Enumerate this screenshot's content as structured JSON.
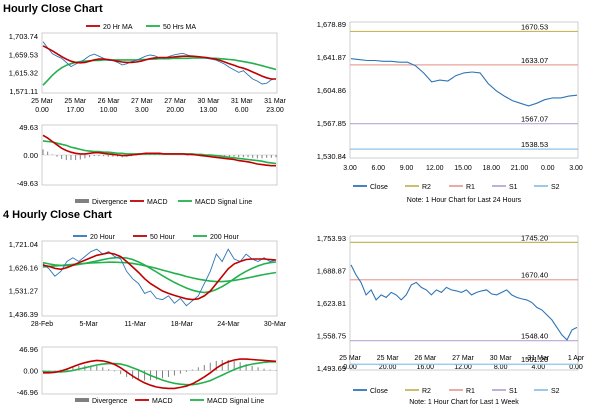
{
  "sections": [
    {
      "title": "Hourly Close Chart"
    },
    {
      "title": "4 Hourly Close Chart"
    }
  ],
  "colors": {
    "ma_short": "#c00000",
    "ma_long": "#22b14c",
    "price": "#2e75b6",
    "macd": "#c00000",
    "signal": "#22b14c",
    "divergence": "#808080",
    "r2": "#c8b65a",
    "r1": "#e8a49c",
    "s1": "#b9a6d4",
    "s2": "#8ec5e6"
  },
  "chart_data": [
    {
      "type": "line",
      "id": "hourly_price",
      "legend": [
        "20 Hr MA",
        "50 Hrs MA"
      ],
      "y_ticks": [
        "1,703.74",
        "1,659.53",
        "1,615.32",
        "1,571.11"
      ],
      "ylim": [
        1571.11,
        1703.74
      ],
      "x_ticks": [
        [
          "25 Mar",
          "0.00"
        ],
        [
          "25 Mar",
          "17.00"
        ],
        [
          "26 Mar",
          "10.00"
        ],
        [
          "27 Mar",
          "3.00"
        ],
        [
          "27 Mar",
          "20.00"
        ],
        [
          "30 Mar",
          "13.00"
        ],
        [
          "31 Mar",
          "6.00"
        ],
        [
          "31 Mar",
          "23.00"
        ]
      ],
      "series": [
        {
          "role": "price",
          "values": [
            1690,
            1675,
            1661,
            1655,
            1650,
            1640,
            1630,
            1636,
            1641,
            1648,
            1656,
            1660,
            1655,
            1650,
            1645,
            1645,
            1640,
            1634,
            1637,
            1642,
            1645,
            1650,
            1655,
            1658,
            1656,
            1651,
            1650,
            1654,
            1658,
            1660,
            1662,
            1658,
            1655,
            1654,
            1652,
            1650,
            1648,
            1646,
            1641,
            1636,
            1628,
            1622,
            1616,
            1620,
            1610,
            1600,
            1595,
            1588,
            1590,
            1598,
            1601
          ]
        },
        {
          "role": "ma_short",
          "values": [
            1680,
            1674,
            1668,
            1661,
            1654,
            1648,
            1643,
            1640,
            1639,
            1640,
            1643,
            1646,
            1648,
            1648,
            1647,
            1645,
            1643,
            1641,
            1640,
            1640,
            1641,
            1643,
            1646,
            1649,
            1651,
            1652,
            1652,
            1652,
            1653,
            1654,
            1655,
            1655,
            1655,
            1654,
            1653,
            1652,
            1650,
            1648,
            1645,
            1641,
            1637,
            1633,
            1629,
            1626,
            1622,
            1617,
            1612,
            1607,
            1603,
            1600,
            1600
          ]
        },
        {
          "role": "ma_long",
          "values": [
            1585,
            1597,
            1609,
            1619,
            1627,
            1633,
            1637,
            1640,
            1642,
            1643,
            1644,
            1645,
            1645,
            1646,
            1646,
            1646,
            1646,
            1646,
            1646,
            1646,
            1646,
            1647,
            1647,
            1648,
            1648,
            1649,
            1649,
            1649,
            1650,
            1650,
            1650,
            1650,
            1651,
            1651,
            1651,
            1651,
            1650,
            1650,
            1649,
            1648,
            1647,
            1646,
            1644,
            1642,
            1640,
            1638,
            1635,
            1632,
            1629,
            1626,
            1623
          ]
        }
      ]
    },
    {
      "type": "line",
      "id": "hourly_macd",
      "legend": [
        "Divergence",
        "MACD",
        "MACD Signal Line"
      ],
      "y_ticks": [
        "49.63",
        "0.00",
        "-49.63"
      ],
      "ylim": [
        -49.63,
        49.63
      ],
      "series": [
        {
          "role": "macd",
          "values": [
            35,
            30,
            24,
            18,
            12,
            8,
            5,
            3,
            2,
            2,
            3,
            4,
            4,
            3,
            2,
            1,
            0,
            -1,
            -1,
            0,
            1,
            2,
            3,
            3,
            3,
            3,
            2,
            2,
            2,
            2,
            2,
            1,
            1,
            0,
            -1,
            -2,
            -3,
            -4,
            -5,
            -6,
            -7,
            -8,
            -10,
            -11,
            -12,
            -14,
            -16,
            -17,
            -18,
            -19,
            -19
          ]
        },
        {
          "role": "signal",
          "values": [
            25,
            24,
            23,
            21,
            19,
            17,
            14,
            12,
            10,
            8,
            7,
            6,
            6,
            5,
            5,
            4,
            3,
            3,
            2,
            2,
            2,
            2,
            2,
            2,
            2,
            2,
            2,
            2,
            2,
            2,
            2,
            2,
            2,
            1,
            1,
            0,
            0,
            -1,
            -2,
            -3,
            -4,
            -5,
            -6,
            -7,
            -8,
            -9,
            -10,
            -11,
            -13,
            -14,
            -15
          ]
        },
        {
          "role": "divergence",
          "values": [
            10,
            6,
            1,
            -3,
            -7,
            -9,
            -9,
            -9,
            -8,
            -6,
            -4,
            -2,
            -2,
            -2,
            -3,
            -3,
            -3,
            -4,
            -3,
            -2,
            -1,
            0,
            1,
            1,
            1,
            1,
            0,
            0,
            0,
            0,
            0,
            -1,
            -1,
            -1,
            -2,
            -2,
            -3,
            -3,
            -3,
            -3,
            -3,
            -3,
            -4,
            -4,
            -4,
            -5,
            -6,
            -6,
            -5,
            -5,
            -4
          ]
        }
      ]
    },
    {
      "type": "line",
      "id": "hourly_pivots",
      "y_ticks": [
        "1,678.89",
        "1,641.87",
        "1,604.86",
        "1,567.85",
        "1,530.84"
      ],
      "ylim": [
        1530.84,
        1678.89
      ],
      "x_ticks": [
        "3.00",
        "6.00",
        "9.00",
        "12.00",
        "15.00",
        "18.00",
        "21.00",
        "0.00",
        "3.00"
      ],
      "levels": [
        {
          "name": "R2",
          "value": 1670.53,
          "label": "1670.53"
        },
        {
          "name": "R1",
          "value": 1633.07,
          "label": "1633.07"
        },
        {
          "name": "S1",
          "value": 1567.07,
          "label": "1567.07"
        },
        {
          "name": "S2",
          "value": 1538.53,
          "label": "1538.53"
        }
      ],
      "legend": [
        "Close",
        "R2",
        "R1",
        "S1",
        "S2"
      ],
      "note": "Note: 1 Hour Chart for Last 24 Hours",
      "close": [
        1640,
        1639,
        1638,
        1638,
        1637,
        1637,
        1636,
        1636,
        1632,
        1624,
        1614,
        1616,
        1615,
        1621,
        1624,
        1625,
        1624,
        1612,
        1604,
        1598,
        1593,
        1590,
        1587,
        1590,
        1594,
        1596,
        1596,
        1598,
        1599
      ]
    },
    {
      "type": "line",
      "id": "four_hourly_price",
      "legend": [
        "20 Hour",
        "50 Hour",
        "200 Hour"
      ],
      "y_ticks": [
        "1,721.04",
        "1,626.16",
        "1,531.27",
        "1,436.39"
      ],
      "ylim": [
        1436.39,
        1721.04
      ],
      "x_ticks": [
        "28-Feb",
        "5-Mar",
        "11-Mar",
        "18-Mar",
        "24-Mar",
        "30-Mar"
      ],
      "series": [
        {
          "role": "price",
          "values": [
            1640,
            1620,
            1590,
            1610,
            1650,
            1665,
            1650,
            1670,
            1690,
            1700,
            1680,
            1690,
            1670,
            1660,
            1610,
            1580,
            1560,
            1520,
            1530,
            1500,
            1495,
            1510,
            1480,
            1500,
            1470,
            1490,
            1510,
            1560,
            1610,
            1680,
            1650,
            1700,
            1660,
            1650,
            1680,
            1660,
            1650,
            1665,
            1650,
            1655
          ]
        },
        {
          "role": "ma_short",
          "values": [
            1635,
            1630,
            1622,
            1618,
            1625,
            1635,
            1645,
            1655,
            1665,
            1675,
            1680,
            1685,
            1680,
            1670,
            1650,
            1628,
            1605,
            1580,
            1560,
            1545,
            1530,
            1520,
            1512,
            1505,
            1498,
            1495,
            1498,
            1510,
            1530,
            1560,
            1590,
            1620,
            1640,
            1650,
            1658,
            1660,
            1660,
            1660,
            1658,
            1656
          ]
        },
        {
          "role": "ma_long",
          "values": [
            1645,
            1640,
            1636,
            1634,
            1633,
            1635,
            1638,
            1642,
            1647,
            1652,
            1657,
            1662,
            1665,
            1666,
            1664,
            1658,
            1648,
            1636,
            1622,
            1607,
            1592,
            1578,
            1565,
            1553,
            1542,
            1533,
            1527,
            1524,
            1527,
            1536,
            1548,
            1563,
            1580,
            1596,
            1610,
            1622,
            1632,
            1640,
            1645,
            1648
          ]
        },
        {
          "role": "ma_long2",
          "values": [
            1628,
            1630,
            1632,
            1634,
            1636,
            1638,
            1640,
            1642,
            1644,
            1645,
            1646,
            1647,
            1647,
            1646,
            1645,
            1642,
            1638,
            1633,
            1628,
            1622,
            1615,
            1609,
            1602,
            1596,
            1589,
            1583,
            1578,
            1574,
            1570,
            1568,
            1568,
            1570,
            1573,
            1577,
            1582,
            1587,
            1592,
            1597,
            1601,
            1605
          ]
        }
      ]
    },
    {
      "type": "line",
      "id": "four_hourly_macd",
      "legend": [
        "Divergence",
        "MACD",
        "MACD Signal Line"
      ],
      "y_ticks": [
        "46.96",
        "0.00",
        "-46.96"
      ],
      "ylim": [
        -46.96,
        46.96
      ],
      "series": [
        {
          "role": "macd",
          "values": [
            -5,
            -5,
            -4,
            -1,
            3,
            8,
            13,
            17,
            20,
            22,
            21,
            18,
            13,
            6,
            -3,
            -12,
            -20,
            -27,
            -32,
            -36,
            -38,
            -39,
            -39,
            -37,
            -34,
            -29,
            -22,
            -14,
            -5,
            5,
            13,
            19,
            23,
            25,
            25,
            24,
            23,
            22,
            21,
            20
          ]
        },
        {
          "role": "signal",
          "values": [
            -2,
            -3,
            -3,
            -3,
            -2,
            0,
            3,
            6,
            9,
            12,
            14,
            15,
            15,
            14,
            11,
            6,
            1,
            -5,
            -11,
            -16,
            -21,
            -25,
            -28,
            -30,
            -31,
            -31,
            -29,
            -26,
            -22,
            -16,
            -10,
            -4,
            2,
            7,
            11,
            14,
            16,
            18,
            19,
            19
          ]
        },
        {
          "role": "divergence",
          "values": [
            -3,
            -2,
            -1,
            2,
            5,
            8,
            10,
            11,
            11,
            10,
            7,
            3,
            -2,
            -8,
            -14,
            -18,
            -21,
            -22,
            -21,
            -20,
            -17,
            -14,
            -11,
            -7,
            -3,
            2,
            7,
            12,
            17,
            21,
            23,
            23,
            21,
            18,
            14,
            10,
            7,
            4,
            2,
            1
          ]
        }
      ]
    },
    {
      "type": "line",
      "id": "four_hourly_pivots",
      "y_ticks": [
        "1,753.93",
        "1,688.87",
        "1,623.81",
        "1,558.75",
        "1,493.69"
      ],
      "ylim": [
        1493.69,
        1753.93
      ],
      "x_ticks": [
        [
          "25 Mar",
          "0.00"
        ],
        [
          "25 Mar",
          "20.00"
        ],
        [
          "26 Mar",
          "16.00"
        ],
        [
          "27 Mar",
          "12.00"
        ],
        [
          "30 Mar",
          "8.00"
        ],
        [
          "31 Mar",
          "4.00"
        ],
        [
          "1 Apr",
          "0.00"
        ]
      ],
      "levels": [
        {
          "name": "R2",
          "value": 1745.2,
          "label": "1745.20"
        },
        {
          "name": "R1",
          "value": 1670.4,
          "label": "1670.40"
        },
        {
          "name": "S1",
          "value": 1548.4,
          "label": "1548.40"
        },
        {
          "name": "S2",
          "value": 1501.2,
          "label": "1501.20"
        }
      ],
      "legend": [
        "Close",
        "R2",
        "R1",
        "S1",
        "S2"
      ],
      "note": "Note: 1 Hour Chart for Last 1 Week",
      "close": [
        1700,
        1680,
        1665,
        1640,
        1650,
        1630,
        1640,
        1635,
        1645,
        1640,
        1630,
        1640,
        1660,
        1665,
        1655,
        1650,
        1640,
        1650,
        1645,
        1655,
        1650,
        1648,
        1645,
        1650,
        1640,
        1645,
        1648,
        1650,
        1642,
        1640,
        1645,
        1650,
        1640,
        1635,
        1632,
        1630,
        1625,
        1615,
        1610,
        1600,
        1590,
        1575,
        1560,
        1550,
        1570,
        1575
      ]
    }
  ]
}
